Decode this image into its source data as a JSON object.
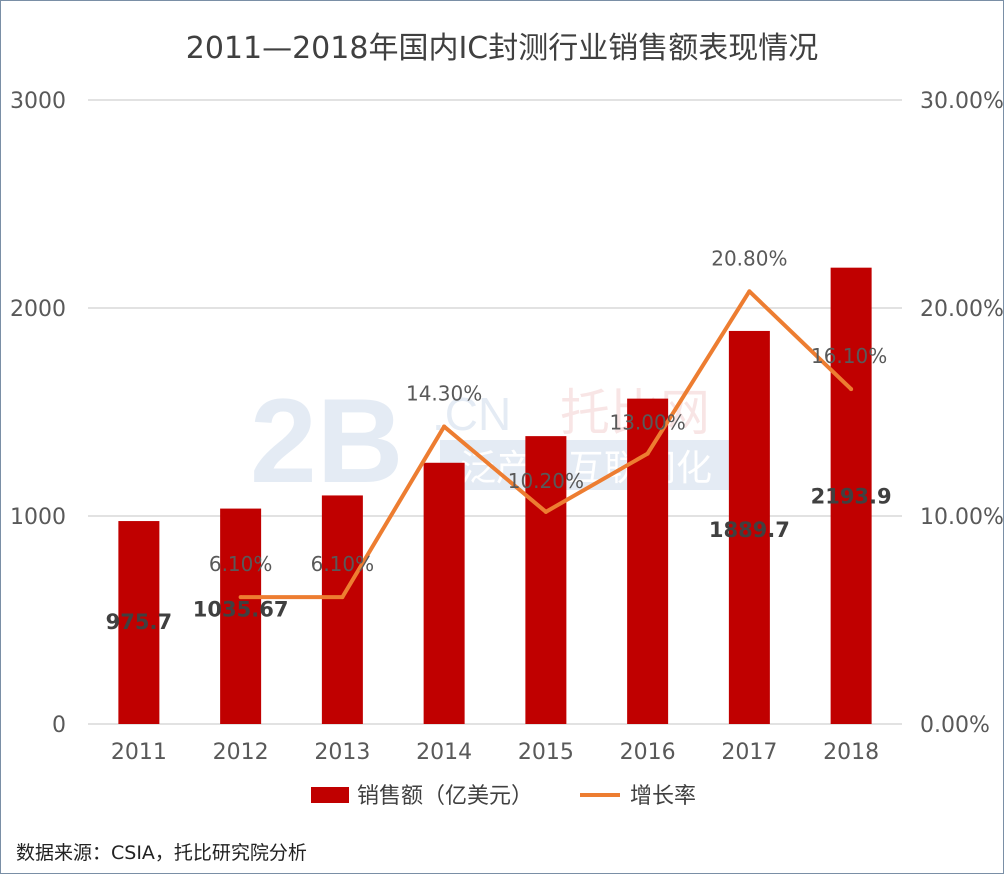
{
  "chart_data": {
    "type": "bar",
    "title": "2011—2018年国内IC封测行业销售额表现情况",
    "categories": [
      "2011",
      "2012",
      "2013",
      "2014",
      "2015",
      "2016",
      "2017",
      "2018"
    ],
    "series": [
      {
        "name": "销售额（亿美元）",
        "type": "bar",
        "axis": "left",
        "values": [
          975.7,
          1035.67,
          1098.85,
          1255.9,
          1384,
          1564.3,
          1889.7,
          2193.9
        ],
        "labels": [
          "975.7",
          "1035.67",
          "",
          "",
          "",
          "",
          "1889.7",
          "2193.9"
        ],
        "color": "#c00000"
      },
      {
        "name": "增长率",
        "type": "line",
        "axis": "right",
        "values": [
          null,
          6.1,
          6.1,
          14.3,
          10.2,
          13.0,
          20.8,
          16.1
        ],
        "labels": [
          "",
          "6.10%",
          "6.10%",
          "14.30%",
          "10.20%",
          "13.00%",
          "20.80%",
          "16.10%"
        ],
        "color": "#ed7d31"
      }
    ],
    "left_axis": {
      "min": 0,
      "max": 3000,
      "ticks": [
        "0",
        "1000",
        "2000",
        "3000"
      ]
    },
    "right_axis": {
      "min": 0,
      "max": 30,
      "ticks": [
        "0.00%",
        "10.00%",
        "20.00%",
        "30.00%"
      ]
    },
    "grid": true,
    "legend_position": "bottom"
  },
  "watermark": {
    "text_big": "2B",
    "text_cn": ".CN",
    "text_brand": "托比网",
    "text_sub": "泛产业互联网化"
  },
  "source_text": "数据来源：CSIA，托比研究院分析",
  "colors": {
    "bar": "#c00000",
    "line": "#ed7d31",
    "grid": "#d9d9d9"
  }
}
